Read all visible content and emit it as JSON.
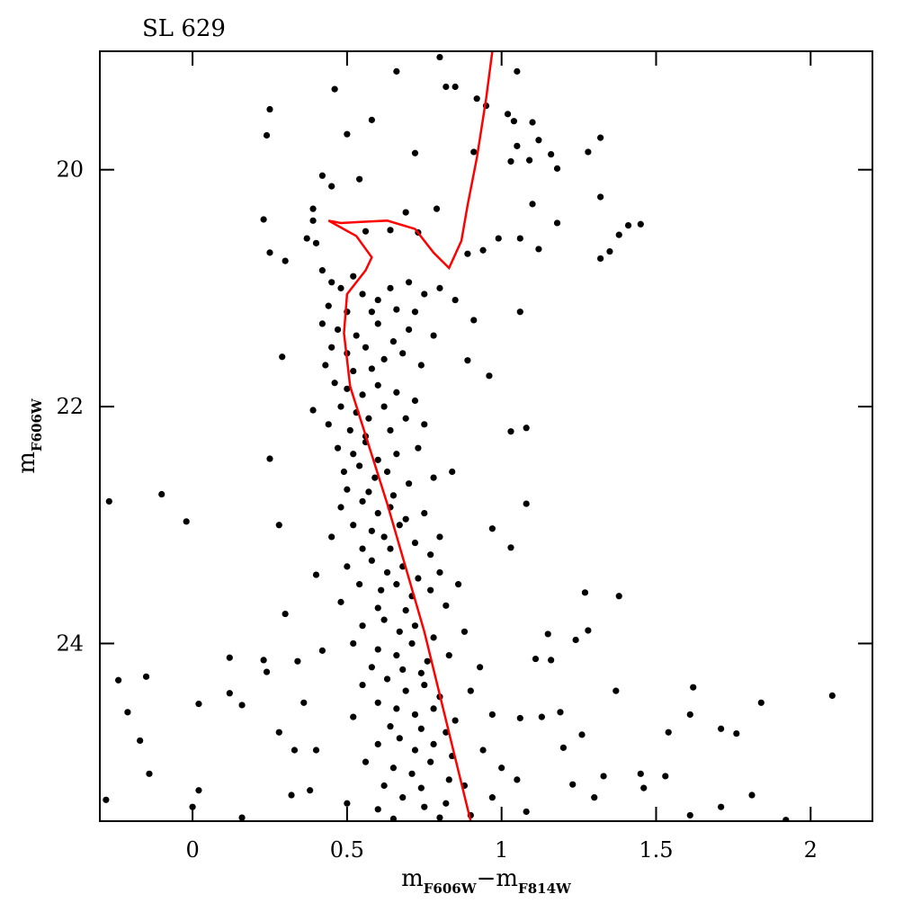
{
  "chart_data": {
    "type": "scatter",
    "title": "SL 629",
    "xlabel": [
      {
        "text": "m"
      },
      {
        "text": "F606W",
        "sub": true
      },
      {
        "text": "−"
      },
      {
        "text": "m"
      },
      {
        "text": "F814W",
        "sub": true
      }
    ],
    "ylabel": [
      {
        "text": "m"
      },
      {
        "text": "F606W",
        "sub": true
      }
    ],
    "xlim": [
      -0.3,
      2.2
    ],
    "ylim": [
      25.5,
      19.0
    ],
    "xticks": [
      0,
      0.5,
      1,
      1.5,
      2
    ],
    "yticks": [
      20,
      22,
      24
    ],
    "series": [
      {
        "type": "scatter",
        "color": "#000000",
        "x": [
          -0.27,
          -0.1,
          -0.02,
          -0.24,
          -0.15,
          -0.21,
          -0.17,
          -0.14,
          -0.28,
          0.02,
          0,
          0.16,
          0.02,
          0.12,
          0.16,
          0.12,
          0.23,
          0.24,
          0.66,
          0.8,
          0.46,
          0.25,
          0.24,
          0.5,
          0.58,
          0.72,
          0.82,
          0.85,
          1.05,
          0.92,
          0.95,
          1.02,
          1.04,
          1.1,
          1.12,
          1.05,
          1.03,
          1.09,
          1.16,
          1.18,
          1.28,
          1.32,
          1.32,
          1.1,
          1.18,
          1.38,
          1.41,
          1.45,
          1.32,
          1.35,
          1.06,
          0.99,
          1.12,
          0.94,
          0.89,
          0.79,
          0.69,
          0.64,
          0.73,
          0.56,
          0.42,
          0.45,
          0.54,
          0.39,
          0.23,
          0.39,
          0.25,
          0.3,
          0.37,
          0.4,
          0.91,
          1.08,
          1.08,
          1.03,
          0.96,
          0.89,
          1.06,
          0.91,
          0.97,
          1.03,
          1.27,
          1.38,
          1.28,
          1.24,
          1.15,
          1.16,
          1.11,
          1.37,
          1.62,
          1.61,
          1.54,
          1.71,
          1.76,
          1.84,
          2.07,
          1.81,
          1.71,
          1.61,
          1.92,
          1.53,
          1.45,
          1.46,
          1.33,
          1.3,
          1.23,
          1.2,
          1.26,
          1.19,
          1.13,
          1.06,
          0.29,
          0.25,
          0.28,
          0.3,
          0.4,
          0.39,
          0.34,
          0.36,
          0.28,
          0.33,
          0.4,
          0.32,
          0.38,
          0.42,
          0.42,
          0.45,
          0.48,
          0.52,
          0.55,
          0.6,
          0.64,
          0.7,
          0.75,
          0.8,
          0.44,
          0.5,
          0.58,
          0.66,
          0.72,
          0.85,
          0.42,
          0.47,
          0.53,
          0.6,
          0.65,
          0.7,
          0.78,
          0.45,
          0.5,
          0.56,
          0.62,
          0.68,
          0.74,
          0.43,
          0.52,
          0.58,
          0.46,
          0.5,
          0.55,
          0.6,
          0.66,
          0.72,
          0.48,
          0.53,
          0.57,
          0.62,
          0.69,
          0.44,
          0.51,
          0.56,
          0.64,
          0.75,
          0.47,
          0.52,
          0.56,
          0.6,
          0.66,
          0.73,
          0.49,
          0.54,
          0.59,
          0.63,
          0.7,
          0.78,
          0.5,
          0.57,
          0.65,
          0.84,
          0.48,
          0.55,
          0.6,
          0.64,
          0.69,
          0.75,
          0.52,
          0.58,
          0.62,
          0.67,
          0.72,
          0.8,
          0.45,
          0.55,
          0.64,
          0.77,
          0.5,
          0.58,
          0.63,
          0.68,
          0.73,
          0.8,
          0.54,
          0.61,
          0.66,
          0.71,
          0.77,
          0.86,
          0.48,
          0.6,
          0.69,
          0.82,
          0.55,
          0.62,
          0.67,
          0.72,
          0.78,
          0.88,
          0.52,
          0.6,
          0.66,
          0.71,
          0.76,
          0.83,
          0.58,
          0.68,
          0.74,
          0.93,
          0.55,
          0.63,
          0.69,
          0.75,
          0.8,
          0.9,
          0.6,
          0.66,
          0.72,
          0.78,
          0.85,
          0.97,
          0.52,
          0.64,
          0.74,
          0.82,
          0.6,
          0.67,
          0.72,
          0.78,
          0.84,
          0.94,
          0.56,
          0.65,
          0.71,
          0.77,
          0.83,
          1.0,
          0.62,
          0.74,
          0.88,
          1.05,
          0.5,
          0.6,
          0.68,
          0.75,
          0.82,
          0.9,
          0.97,
          1.08,
          0.65,
          0.8
        ],
        "y": [
          22.8,
          22.74,
          22.97,
          24.31,
          24.28,
          24.58,
          24.82,
          25.1,
          25.32,
          25.24,
          25.38,
          25.47,
          24.51,
          24.42,
          24.52,
          24.12,
          24.14,
          24.24,
          19.17,
          19.05,
          19.32,
          19.49,
          19.71,
          19.7,
          19.58,
          19.86,
          19.3,
          19.3,
          19.17,
          19.4,
          19.46,
          19.53,
          19.59,
          19.6,
          19.75,
          19.8,
          19.93,
          19.92,
          19.87,
          19.99,
          19.85,
          19.73,
          20.23,
          20.29,
          20.45,
          20.55,
          20.47,
          20.46,
          20.75,
          20.69,
          20.58,
          20.58,
          20.67,
          20.68,
          20.71,
          20.33,
          20.36,
          20.51,
          20.53,
          20.52,
          20.05,
          20.14,
          20.08,
          20.33,
          20.42,
          20.43,
          20.7,
          20.77,
          20.58,
          20.62,
          19.85,
          22.82,
          22.18,
          22.21,
          21.74,
          21.61,
          21.2,
          21.27,
          23.03,
          23.19,
          23.57,
          23.6,
          23.89,
          23.97,
          23.92,
          24.14,
          24.13,
          24.4,
          24.37,
          24.6,
          24.75,
          24.72,
          24.76,
          24.5,
          24.44,
          25.28,
          25.38,
          25.45,
          25.49,
          25.12,
          25.1,
          25.22,
          25.12,
          25.3,
          25.19,
          24.88,
          24.77,
          24.58,
          24.62,
          24.63,
          21.58,
          22.44,
          23.0,
          23.75,
          23.42,
          22.03,
          24.15,
          24.5,
          24.75,
          24.9,
          24.9,
          25.28,
          25.24,
          24.06,
          20.85,
          20.95,
          21.0,
          20.9,
          21.05,
          21.1,
          21.0,
          20.95,
          21.05,
          21.0,
          21.15,
          21.2,
          21.2,
          21.18,
          21.2,
          21.1,
          21.3,
          21.35,
          21.4,
          21.3,
          21.45,
          21.35,
          21.4,
          21.5,
          21.55,
          21.5,
          21.6,
          21.55,
          21.65,
          21.65,
          21.7,
          21.68,
          21.8,
          21.85,
          21.9,
          21.82,
          21.88,
          21.95,
          22.0,
          22.05,
          22.1,
          22.0,
          22.1,
          22.15,
          22.2,
          22.25,
          22.2,
          22.15,
          22.35,
          22.4,
          22.3,
          22.45,
          22.4,
          22.35,
          22.55,
          22.5,
          22.6,
          22.55,
          22.65,
          22.6,
          22.7,
          22.72,
          22.75,
          22.55,
          22.85,
          22.8,
          22.9,
          22.85,
          22.95,
          22.9,
          23.0,
          23.05,
          23.1,
          23.0,
          23.15,
          23.1,
          23.1,
          23.2,
          23.2,
          23.25,
          23.35,
          23.3,
          23.4,
          23.35,
          23.45,
          23.4,
          23.5,
          23.55,
          23.5,
          23.6,
          23.55,
          23.5,
          23.65,
          23.7,
          23.72,
          23.68,
          23.85,
          23.8,
          23.9,
          23.85,
          23.95,
          23.9,
          24.0,
          24.05,
          24.1,
          24.0,
          24.15,
          24.1,
          24.2,
          24.22,
          24.25,
          24.2,
          24.35,
          24.3,
          24.4,
          24.35,
          24.45,
          24.4,
          24.5,
          24.55,
          24.6,
          24.55,
          24.65,
          24.6,
          24.62,
          24.7,
          24.72,
          24.75,
          24.85,
          24.8,
          24.9,
          24.85,
          24.95,
          24.9,
          25.0,
          25.05,
          25.1,
          25.0,
          25.15,
          25.05,
          25.2,
          25.22,
          25.2,
          25.15,
          25.35,
          25.4,
          25.3,
          25.38,
          25.35,
          25.45,
          25.3,
          25.42,
          25.48,
          25.47
        ]
      },
      {
        "type": "line",
        "color": "#ff0000",
        "x": [
          0.97,
          0.95,
          0.92,
          0.89,
          0.87,
          0.83,
          0.78,
          0.72,
          0.63,
          0.55,
          0.48,
          0.44,
          0.53,
          0.58,
          0.56,
          0.5,
          0.49,
          0.51,
          0.63,
          0.75,
          0.9
        ],
        "y": [
          19.0,
          19.4,
          19.9,
          20.3,
          20.6,
          20.83,
          20.7,
          20.5,
          20.43,
          20.44,
          20.45,
          20.43,
          20.56,
          20.74,
          20.85,
          21.05,
          21.38,
          21.83,
          22.82,
          23.9,
          25.5
        ]
      }
    ]
  }
}
